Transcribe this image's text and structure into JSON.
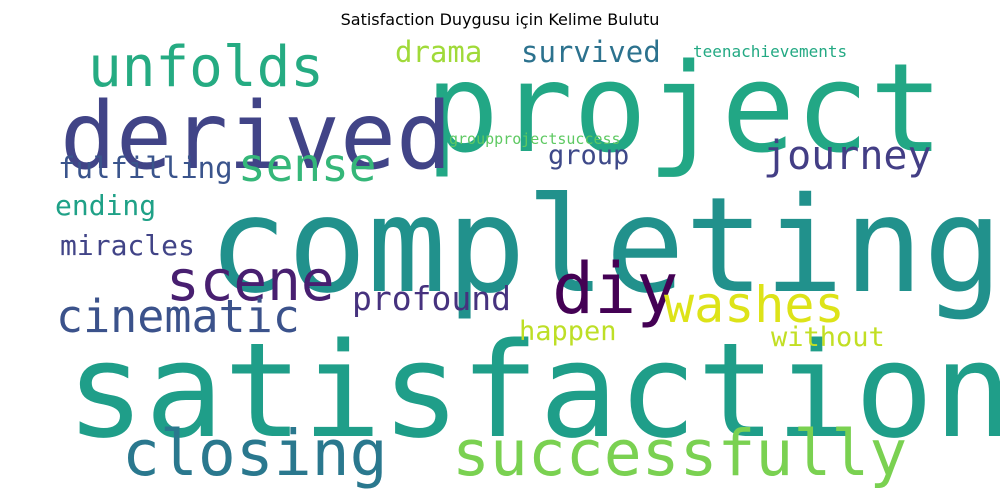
{
  "title": "Satisfaction Duygusu için Kelime Bulutu",
  "words": [
    {
      "text": "completing",
      "color": "#21918c"
    },
    {
      "text": "satisfaction",
      "color": "#1f9e89"
    },
    {
      "text": "project",
      "color": "#22a785"
    },
    {
      "text": "derived",
      "color": "#414487"
    },
    {
      "text": "successfully",
      "color": "#7ad151"
    },
    {
      "text": "closing",
      "color": "#2a788e"
    },
    {
      "text": "unfolds",
      "color": "#25ab82"
    },
    {
      "text": "scene",
      "color": "#481f70"
    },
    {
      "text": "diy",
      "color": "#440154"
    },
    {
      "text": "washes",
      "color": "#dde318"
    },
    {
      "text": "sense",
      "color": "#35b779"
    },
    {
      "text": "cinematic",
      "color": "#3b528b"
    },
    {
      "text": "journey",
      "color": "#433e85"
    },
    {
      "text": "profound",
      "color": "#46327e"
    },
    {
      "text": "survived",
      "color": "#2c728e"
    },
    {
      "text": "drama",
      "color": "#a0da39"
    },
    {
      "text": "group",
      "color": "#3e4989"
    },
    {
      "text": "happen",
      "color": "#bddf26"
    },
    {
      "text": "without",
      "color": "#c2df23"
    },
    {
      "text": "fulfilling",
      "color": "#3a548c"
    },
    {
      "text": "ending",
      "color": "#1fa187"
    },
    {
      "text": "miracles",
      "color": "#414487"
    },
    {
      "text": "teenachievements",
      "color": "#23a983"
    },
    {
      "text": "groupprojectsuccess",
      "color": "#5ec962"
    }
  ]
}
